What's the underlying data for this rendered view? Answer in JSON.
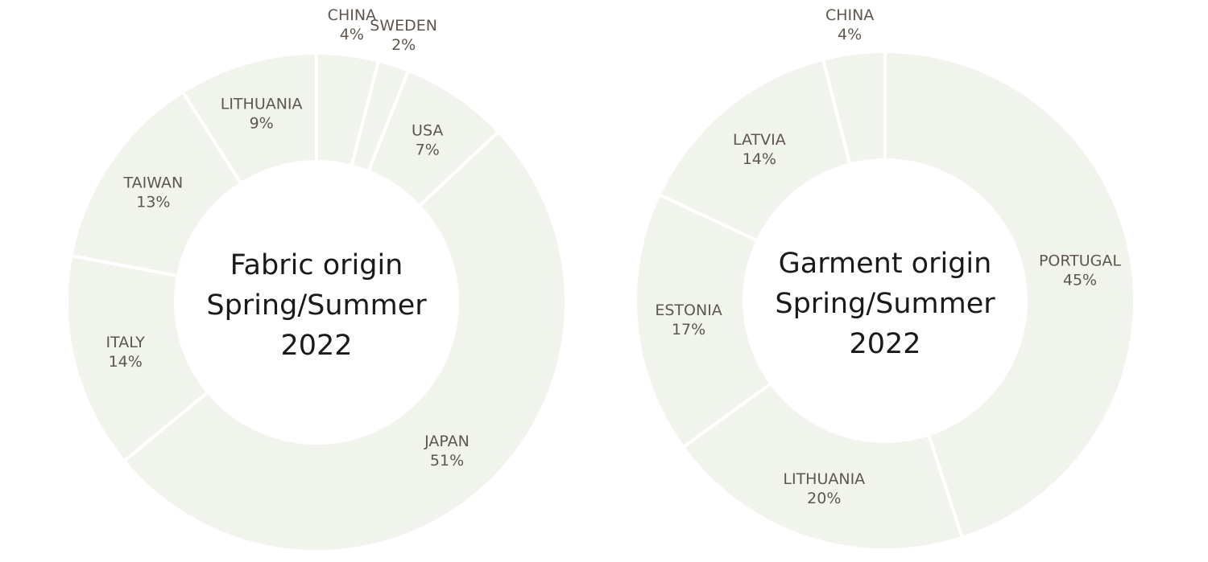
{
  "colors": {
    "slice_fill": "#f1f3ed",
    "separator": "#ffffff",
    "label_text": "#5e574e",
    "center_text": "#1a1a1a"
  },
  "chart_data": [
    {
      "type": "pie",
      "title_lines": [
        "Fabric origin",
        "Spring/Summer",
        "2022"
      ],
      "slices": [
        {
          "label": "CHINA",
          "value": 4,
          "value_label": "4%"
        },
        {
          "label": "SWEDEN",
          "value": 2,
          "value_label": "2%"
        },
        {
          "label": "USA",
          "value": 7,
          "value_label": "7%"
        },
        {
          "label": "JAPAN",
          "value": 51,
          "value_label": "51%"
        },
        {
          "label": "ITALY",
          "value": 14,
          "value_label": "14%"
        },
        {
          "label": "TAIWAN",
          "value": 13,
          "value_label": "13%"
        },
        {
          "label": "LITHUANIA",
          "value": 9,
          "value_label": "9%"
        }
      ]
    },
    {
      "type": "pie",
      "title_lines": [
        "Garment origin",
        "Spring/Summer",
        "2022"
      ],
      "slices": [
        {
          "label": "PORTUGAL",
          "value": 45,
          "value_label": "45%"
        },
        {
          "label": "LITHUANIA",
          "value": 20,
          "value_label": "20%"
        },
        {
          "label": "ESTONIA",
          "value": 17,
          "value_label": "17%"
        },
        {
          "label": "LATVIA",
          "value": 14,
          "value_label": "14%"
        },
        {
          "label": "CHINA",
          "value": 4,
          "value_label": "4%"
        }
      ]
    }
  ]
}
